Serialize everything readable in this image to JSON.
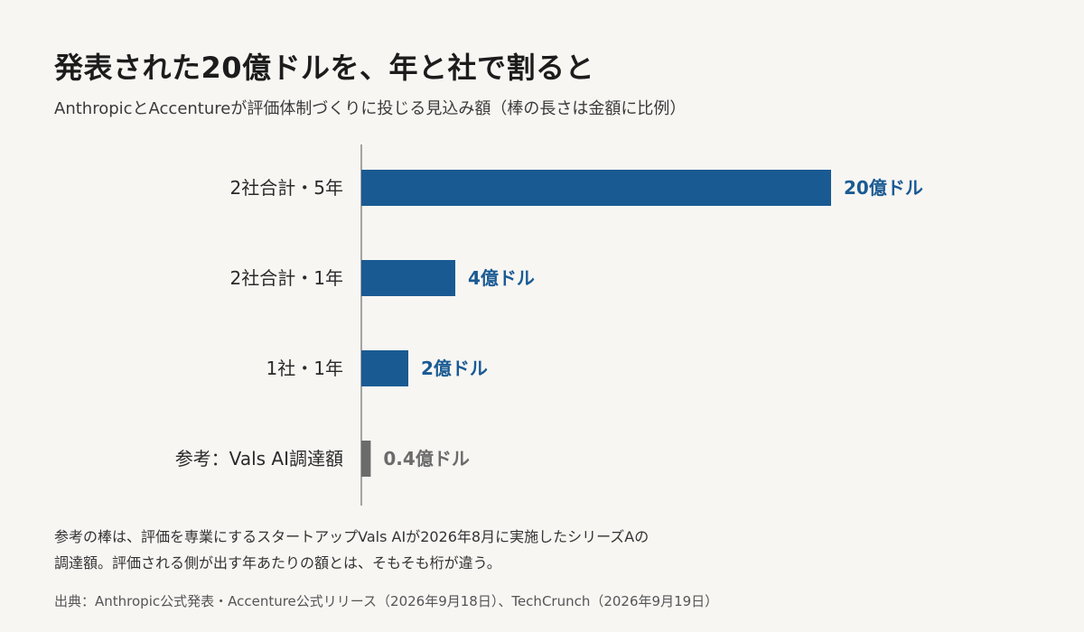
{
  "title": "発表された20億ドルを、年と社で割ると",
  "subtitle": "AnthropicとAccentureが評価体制づくりに投じる見込み額（棒の長さは金額に比例）",
  "note_lines": [
    "参考の棒は、評価を専業にするスタートアップVals AIが2026年8月に実施したシリーズAの",
    "調達額。評価される側が出す年あたりの額とは、そもそも桁が違う。"
  ],
  "source": "出典：Anthropic公式発表・Accenture公式リリース（2026年9月18日）、TechCrunch（2026年9月19日）",
  "colors": {
    "primary": "#1a5a93",
    "reference": "#6b6b6b",
    "axis": "#888888",
    "background": "#f7f6f3"
  },
  "chart_data": {
    "type": "bar",
    "orientation": "horizontal",
    "unit": "億ドル",
    "xlim": [
      0,
      20
    ],
    "grid": false,
    "legend": "none",
    "categories": [
      "2社合計・5年",
      "2社合計・1年",
      "1社・1年",
      "参考：Vals AI調達額"
    ],
    "values": [
      20,
      4,
      2,
      0.4
    ],
    "value_labels": [
      "20億ドル",
      "4億ドル",
      "2億ドル",
      "0.4億ドル"
    ],
    "highlight": [
      true,
      true,
      true,
      false
    ]
  }
}
